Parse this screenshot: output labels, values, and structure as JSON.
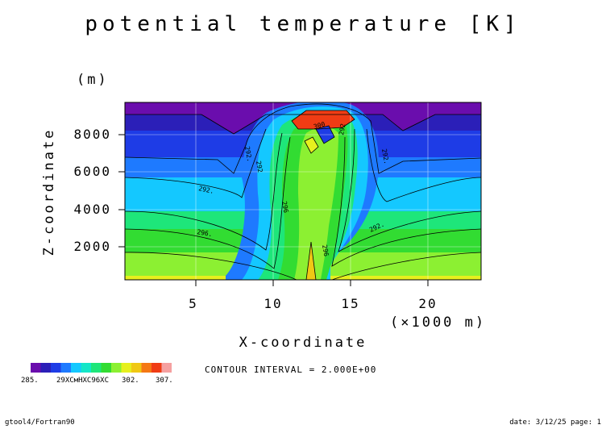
{
  "chart_data": {
    "type": "contour",
    "title": "potential temperature [K]",
    "xlabel": "X-coordinate",
    "x_unit": "(×1000 m)",
    "ylabel": "Z-coordinate",
    "y_unit": "(m)",
    "xlim": [
      0,
      23.5
    ],
    "ylim": [
      0,
      9800
    ],
    "x_ticks": [
      5,
      10,
      15,
      20
    ],
    "y_ticks": [
      2000,
      4000,
      6000,
      8000
    ],
    "contour_interval_text": "CONTOUR INTERVAL = 2.000E+00",
    "contour_labels": [
      "292",
      "292.",
      "296",
      "296.",
      "300",
      "292.",
      "292",
      "296",
      "292.",
      "292."
    ],
    "colorbar": {
      "labels": [
        "285.",
        "29XCмHXC96XC",
        "302.",
        "307."
      ],
      "colors": [
        "#6a0dad",
        "#2b1fb8",
        "#1e3ce6",
        "#1e7aff",
        "#14c8ff",
        "#14e6c8",
        "#1ee67a",
        "#32dc32",
        "#8cf032",
        "#e6f01e",
        "#f0c814",
        "#f57814",
        "#f03c14",
        "#f5a0a0"
      ]
    },
    "bands": [
      {
        "value_low": 285,
        "value_high": 287,
        "color": "#6a0dad"
      },
      {
        "value_low": 287,
        "value_high": 289,
        "color": "#2b1fb8"
      },
      {
        "value_low": 289,
        "value_high": 291,
        "color": "#1e3ce6"
      },
      {
        "value_low": 291,
        "value_high": 293,
        "color": "#1e7aff"
      },
      {
        "value_low": 293,
        "value_high": 295,
        "color": "#14c8ff"
      },
      {
        "value_low": 295,
        "value_high": 297,
        "color": "#1ee67a"
      },
      {
        "value_low": 297,
        "value_high": 299,
        "color": "#32dc32"
      },
      {
        "value_low": 299,
        "value_high": 301,
        "color": "#8cf032"
      },
      {
        "value_low": 301,
        "value_high": 303,
        "color": "#e6f01e"
      },
      {
        "value_low": 303,
        "value_high": 305,
        "color": "#f0c814"
      },
      {
        "value_low": 305,
        "value_high": 307,
        "color": "#f03c14"
      }
    ]
  },
  "footer": {
    "left": "gtool4/Fortran90",
    "right": "date: 3/12/25 page: 1"
  }
}
